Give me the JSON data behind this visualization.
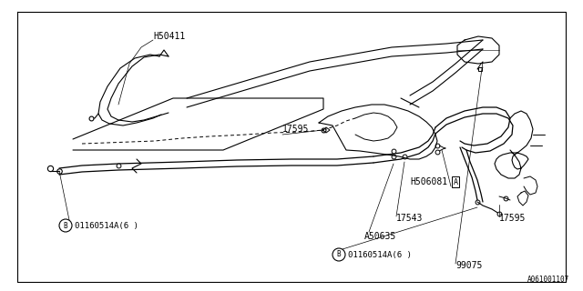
{
  "bg_color": "#ffffff",
  "line_color": "#000000",
  "fig_width": 6.4,
  "fig_height": 3.2,
  "dpi": 100,
  "diagram_number": "A061001107",
  "border": [
    0.03,
    0.04,
    0.97,
    0.97
  ]
}
